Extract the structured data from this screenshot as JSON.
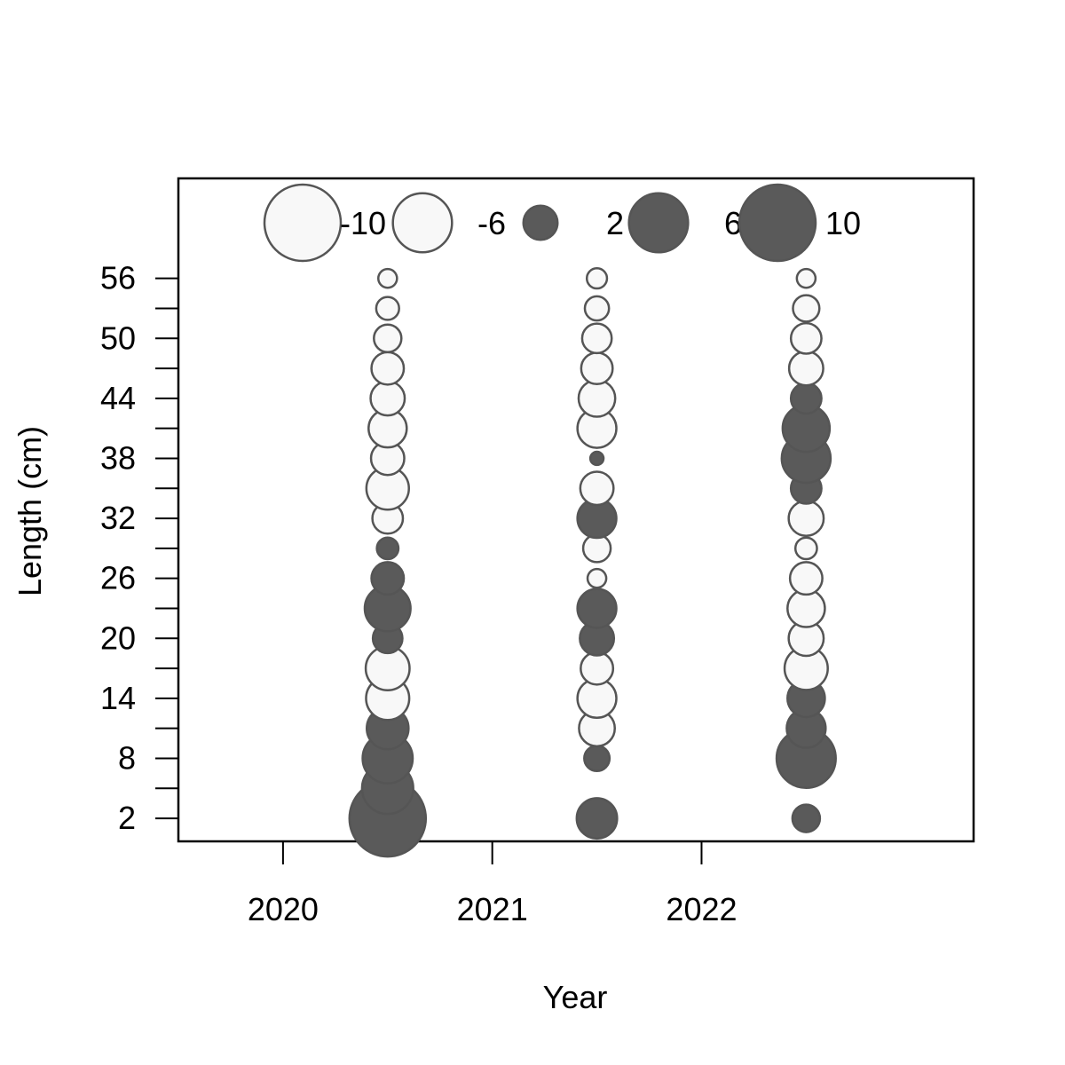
{
  "chart_data": {
    "type": "scatter",
    "subtype": "bubble",
    "xlabel": "Year",
    "ylabel": "Length (cm)",
    "x_ticks": [
      "2020",
      "2021",
      "2022"
    ],
    "y_ticks": [
      "2",
      "8",
      "14",
      "20",
      "26",
      "32",
      "38",
      "44",
      "50",
      "56"
    ],
    "xlim": [
      2019.5,
      2023.3
    ],
    "ylim": [
      -0.3,
      66
    ],
    "grid": false,
    "legend": {
      "position": "top",
      "entries": [
        {
          "label": "-10",
          "value": -10
        },
        {
          "label": "-6",
          "value": -6
        },
        {
          "label": "2",
          "value": 2
        },
        {
          "label": "6",
          "value": 6
        },
        {
          "label": "10",
          "value": 10
        }
      ]
    },
    "colors": {
      "positive_fill": "#5a5a5a",
      "negative_fill": "#f8f8f8",
      "stroke": "#555555"
    },
    "series": [
      {
        "x": 2020.5,
        "lengths": [
          2,
          5,
          8,
          11,
          14,
          17,
          20,
          23,
          26,
          29,
          32,
          35,
          38,
          41,
          44,
          47,
          50,
          53,
          56
        ],
        "values": [
          10,
          4.5,
          4.3,
          3,
          -3.2,
          -3.3,
          1.5,
          3.6,
          1.8,
          0.8,
          -1.6,
          -3.1,
          -1.9,
          -2.5,
          -2.0,
          -1.8,
          -1.3,
          -0.9,
          -0.6
        ]
      },
      {
        "x": 2021.5,
        "lengths": [
          2,
          5,
          8,
          11,
          14,
          17,
          20,
          23,
          26,
          29,
          32,
          35,
          38,
          41,
          44,
          47,
          50,
          53,
          56
        ],
        "values": [
          2.8,
          0,
          1.1,
          -2.2,
          -2.6,
          -1.8,
          2,
          2.6,
          -0.6,
          -1.3,
          2.6,
          -1.9,
          0.3,
          -2.6,
          -2.3,
          -1.7,
          -1.5,
          -1.0,
          -0.7
        ]
      },
      {
        "x": 2022.5,
        "lengths": [
          2,
          5,
          8,
          11,
          14,
          17,
          20,
          23,
          26,
          29,
          32,
          35,
          38,
          41,
          44,
          47,
          50,
          53,
          56
        ],
        "values": [
          1.3,
          0,
          6,
          2.6,
          2.4,
          -3.2,
          -2.1,
          -2.4,
          -1.8,
          -0.8,
          -2.1,
          1.6,
          4.1,
          3.8,
          1.6,
          -2.0,
          -1.6,
          -1.2,
          -0.6
        ]
      }
    ]
  }
}
